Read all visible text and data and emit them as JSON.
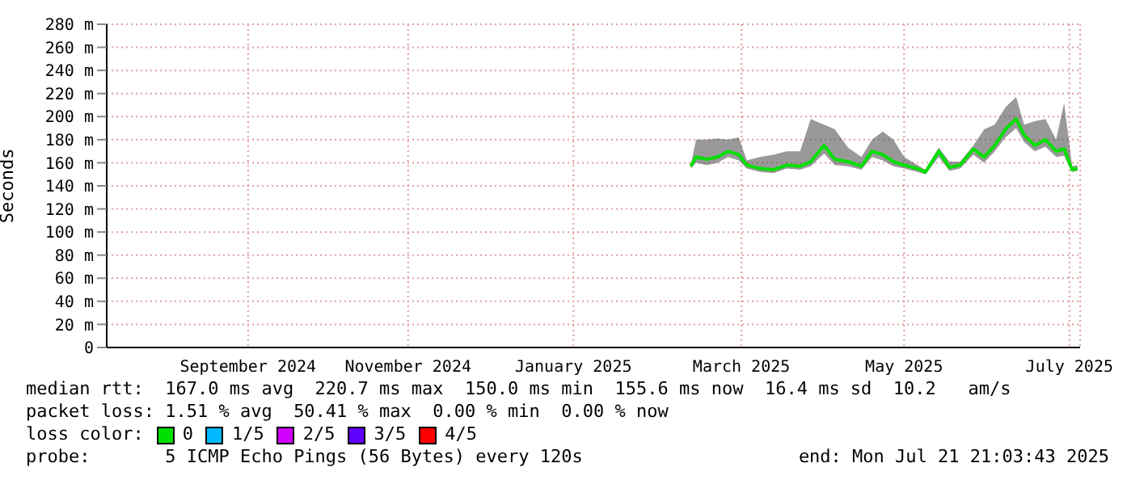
{
  "chart_data": {
    "type": "line",
    "ylabel": "Seconds",
    "legend_title": "loss color:",
    "x": [
      "2025-02-25",
      "2025-02-27",
      "2025-03-03",
      "2025-03-07",
      "2025-03-11",
      "2025-03-15",
      "2025-03-18",
      "2025-03-23",
      "2025-03-28",
      "2025-04-02",
      "2025-04-07",
      "2025-04-11",
      "2025-04-16",
      "2025-04-20",
      "2025-04-25",
      "2025-04-30",
      "2025-05-04",
      "2025-05-08",
      "2025-05-12",
      "2025-05-16",
      "2025-05-21",
      "2025-05-24",
      "2025-05-29",
      "2025-06-02",
      "2025-06-06",
      "2025-06-11",
      "2025-06-15",
      "2025-06-19",
      "2025-06-23",
      "2025-06-27",
      "2025-06-30",
      "2025-07-04",
      "2025-07-08",
      "2025-07-12",
      "2025-07-15",
      "2025-07-18",
      "2025-07-20"
    ],
    "series": [
      {
        "name": "0",
        "color": "#00e000",
        "values": [
          157,
          165,
          163,
          165,
          170,
          167,
          158,
          155,
          154,
          158,
          157,
          161,
          175,
          163,
          161,
          157,
          170,
          167,
          161,
          158,
          155,
          152,
          170,
          156,
          158,
          172,
          165,
          175,
          189,
          198,
          184,
          175,
          180,
          170,
          172,
          154,
          155
        ],
        "lower": [
          155,
          160,
          158,
          160,
          165,
          162,
          155,
          152,
          151,
          155,
          154,
          157,
          168,
          158,
          157,
          154,
          165,
          162,
          157,
          155,
          152,
          150,
          165,
          153,
          155,
          167,
          160,
          170,
          182,
          190,
          178,
          170,
          174,
          165,
          166,
          152,
          153
        ],
        "upper": [
          158,
          180,
          180,
          181,
          180,
          182,
          162,
          165,
          167,
          170,
          170,
          198,
          193,
          189,
          173,
          165,
          180,
          187,
          180,
          165,
          158,
          154,
          173,
          161,
          161,
          175,
          189,
          193,
          208,
          217,
          193,
          196,
          198,
          180,
          212,
          157,
          158
        ]
      },
      {
        "name": "1/5",
        "color": "#00b8ff",
        "values": [
          null,
          null,
          null,
          null,
          null,
          null,
          null,
          null,
          null,
          null,
          null,
          null,
          null,
          null,
          null,
          null,
          null,
          null,
          null,
          null,
          null,
          null,
          null,
          null,
          null,
          null,
          null,
          null,
          null,
          null,
          null,
          null,
          null,
          null,
          null,
          null,
          null
        ]
      },
      {
        "name": "2/5",
        "color": "#d000ff",
        "values": [
          null,
          null,
          null,
          null,
          null,
          null,
          null,
          null,
          null,
          null,
          null,
          null,
          null,
          null,
          null,
          null,
          null,
          null,
          null,
          null,
          null,
          null,
          null,
          null,
          null,
          null,
          null,
          null,
          null,
          null,
          null,
          null,
          null,
          null,
          null,
          null,
          null
        ]
      },
      {
        "name": "3/5",
        "color": "#6000ff",
        "values": [
          null,
          null,
          null,
          null,
          null,
          null,
          null,
          null,
          null,
          null,
          null,
          null,
          null,
          null,
          null,
          null,
          null,
          null,
          null,
          null,
          null,
          null,
          null,
          null,
          null,
          null,
          null,
          null,
          null,
          null,
          null,
          null,
          null,
          null,
          null,
          null,
          null
        ]
      },
      {
        "name": "4/5",
        "color": "#ff0000",
        "values": [
          null,
          null,
          null,
          null,
          null,
          null,
          null,
          null,
          null,
          null,
          null,
          null,
          null,
          null,
          null,
          null,
          null,
          null,
          null,
          null,
          null,
          null,
          null,
          null,
          null,
          null,
          null,
          null,
          null,
          null,
          null,
          null,
          null,
          null,
          null,
          null,
          null
        ]
      }
    ],
    "xlim": [
      "2024-07-21",
      "2025-07-21"
    ],
    "xticks": [
      {
        "value": "2024-09-12",
        "label": "September 2024"
      },
      {
        "value": "2024-11-11",
        "label": "November 2024"
      },
      {
        "value": "2025-01-12",
        "label": "January 2025"
      },
      {
        "value": "2025-03-16",
        "label": "March 2025"
      },
      {
        "value": "2025-05-16",
        "label": "May 2025"
      },
      {
        "value": "2025-07-17",
        "label": "July 2025"
      }
    ],
    "ylim": [
      0,
      280
    ],
    "yticks": [
      0,
      {
        "value": 20,
        "label": "20 m"
      },
      {
        "value": 40,
        "label": "40 m"
      },
      {
        "value": 60,
        "label": "60 m"
      },
      {
        "value": 80,
        "label": "80 m"
      },
      {
        "value": 100,
        "label": "100 m"
      },
      {
        "value": 120,
        "label": "120 m"
      },
      {
        "value": 140,
        "label": "140 m"
      },
      {
        "value": 160,
        "label": "160 m"
      },
      {
        "value": 180,
        "label": "180 m"
      },
      {
        "value": 200,
        "label": "200 m"
      },
      {
        "value": 220,
        "label": "220 m"
      },
      {
        "value": 240,
        "label": "240 m"
      },
      {
        "value": 260,
        "label": "260 m"
      },
      {
        "value": 280,
        "label": "280 m"
      }
    ],
    "grid": true,
    "legend": "bottom",
    "marker": "none",
    "line_style": "solid",
    "annotations": [
      "median rtt:  167.0 ms avg  220.7 ms max  150.0 ms min  155.6 ms now  16.4 ms sd  10.2   am/s",
      "packet loss: 1.51 % avg  50.41 % max  0.00 % min  0.00 % now",
      "probe:       5 ICMP Echo Pings (56 Bytes) every 120s",
      "end: Mon Jul 21 21:03:43 2025"
    ]
  }
}
